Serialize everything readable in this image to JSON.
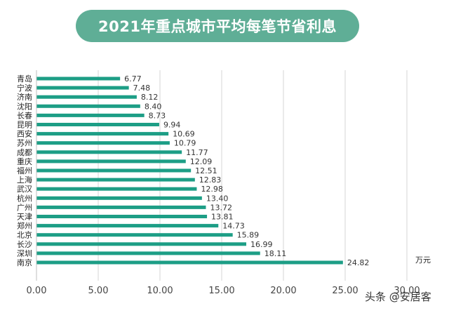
{
  "chart_data": {
    "type": "bar",
    "orientation": "horizontal",
    "title": "2021年重点城市平均每笔节省利息",
    "unit_label": "万元",
    "categories": [
      "青岛",
      "宁波",
      "济南",
      "沈阳",
      "长春",
      "昆明",
      "西安",
      "苏州",
      "成都",
      "重庆",
      "福州",
      "上海",
      "武汉",
      "杭州",
      "广州",
      "天津",
      "郑州",
      "北京",
      "长沙",
      "深圳",
      "南京"
    ],
    "values": [
      6.77,
      7.48,
      8.12,
      8.4,
      8.73,
      9.94,
      10.69,
      10.79,
      11.77,
      12.09,
      12.51,
      12.83,
      12.98,
      13.4,
      13.72,
      13.81,
      14.73,
      15.89,
      16.99,
      18.11,
      24.82
    ],
    "value_labels": [
      "6.77",
      "7.48",
      "8.12",
      "8.40",
      "8.73",
      "9.94",
      "10.69",
      "10.79",
      "11.77",
      "12.09",
      "12.51",
      "12.83",
      "12.98",
      "13.40",
      "13.72",
      "13.81",
      "14.73",
      "15.89",
      "16.99",
      "18.11",
      "24.82"
    ],
    "xlim": [
      0,
      30
    ],
    "x_ticks": [
      0,
      5,
      10,
      15,
      20,
      25,
      30
    ],
    "x_tick_labels": [
      "0.00",
      "5.00",
      "10.00",
      "15.00",
      "20.00",
      "25.00",
      "30.00"
    ],
    "grid": true,
    "legend": "none",
    "colors": {
      "bar": "#1d9e86",
      "title_bg": "#5fae96",
      "grid": "#d4d4d4"
    }
  },
  "watermark": "头条 @安居客"
}
